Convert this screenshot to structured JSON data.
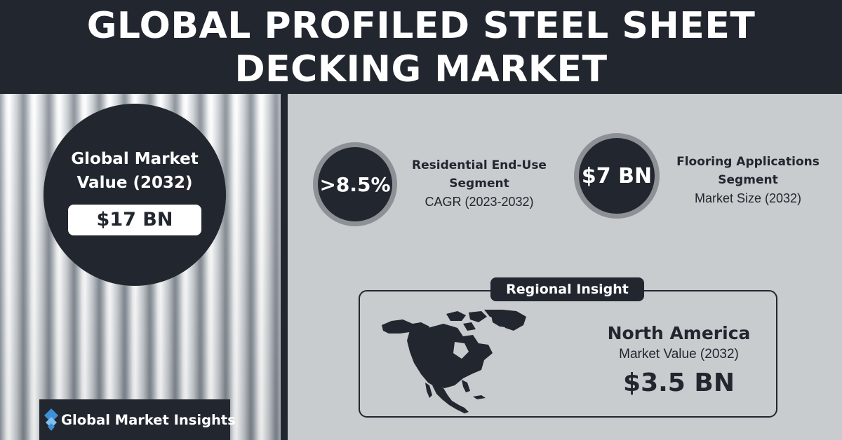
{
  "header": {
    "title_line1": "GLOBAL PROFILED STEEL SHEET",
    "title_line2": "DECKING MARKET"
  },
  "global_market": {
    "label_line1": "Global Market",
    "label_line2": "Value (2032)",
    "value": "$17 BN"
  },
  "stats": [
    {
      "value": ">8.5%",
      "title_line1": "Residential End-Use",
      "title_line2": "Segment",
      "subtitle": "CAGR (2023-2032)"
    },
    {
      "value": "$7 BN",
      "title_line1": "Flooring Applications",
      "title_line2": "Segment",
      "subtitle": "Market Size (2032)"
    }
  ],
  "regional": {
    "label": "Regional Insight",
    "region": "North America",
    "metric": "Market Value (2032)",
    "value": "$3.5 BN",
    "map_icon": "north-america-map-icon"
  },
  "logo": {
    "text": "Global Market Insights",
    "icon": "diamond-logo-icon"
  },
  "colors": {
    "dark": "#22262f",
    "panel": "#c9cccf",
    "ring": "#8d9196",
    "accent_blue": "#3f8fd6"
  }
}
